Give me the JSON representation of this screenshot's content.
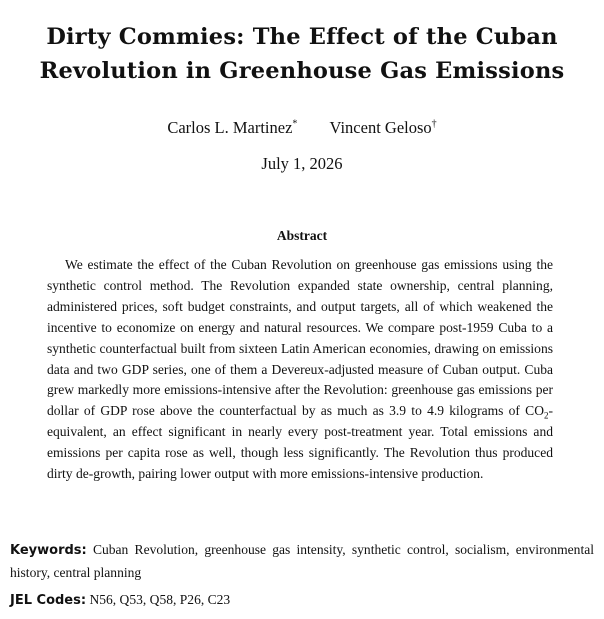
{
  "paper": {
    "title_line1": "Dirty Commies: The Effect of the Cuban",
    "title_line2": "Revolution in Greenhouse Gas Emissions",
    "authors": [
      {
        "name": "Carlos L. Martinez",
        "mark": "*"
      },
      {
        "name": "Vincent Geloso",
        "mark": "†"
      }
    ],
    "date": "July 1, 2026",
    "abstract_heading": "Abstract",
    "abstract_part1": "We estimate the effect of the Cuban Revolution on greenhouse gas emissions using the synthetic control method. The Revolution expanded state ownership, central planning, administered prices, soft budget constraints, and output targets, all of which weakened the incentive to economize on energy and natural resources. We compare post-1959 Cuba to a synthetic counterfactual built from sixteen Latin American economies, drawing on emissions data and two GDP series, one of them a Devereux-adjusted measure of Cuban output. Cuba grew markedly more emissions-intensive after the Revolution: greenhouse gas emissions per dollar of GDP rose above the counterfactual by as much as 3.9 to 4.9 kilograms of CO",
    "abstract_subscript": "2",
    "abstract_part2": "-equivalent, an effect significant in nearly every post-treatment year. Total emissions and emissions per capita rose as well, though less significantly. The Revolution thus produced dirty de-growth, pairing lower output with more emissions-intensive production.",
    "keywords_label": "Keywords:",
    "keywords_text": "Cuban Revolution, greenhouse gas intensity, synthetic control, socialism, environmental history, central planning",
    "jel_label": "JEL Codes:",
    "jel_text": "N56, Q53, Q58, P26, C23"
  }
}
